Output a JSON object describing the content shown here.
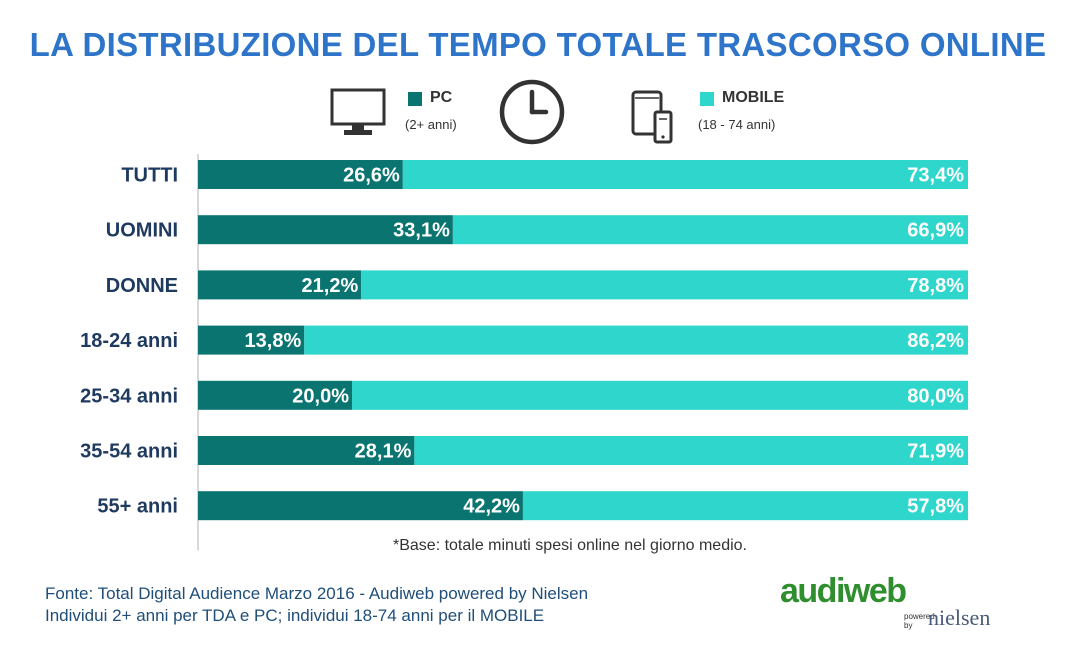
{
  "title": "LA DISTRIBUZIONE DEL TEMPO TOTALE TRASCORSO ONLINE",
  "legend": {
    "pc": {
      "label": "PC",
      "sub": "(2+ anni)",
      "color": "#0a7570",
      "icon": "monitor-icon"
    },
    "clock_icon": "clock-icon",
    "mobile": {
      "label": "MOBILE",
      "sub": "(18 - 74 anni)",
      "color": "#2fd6cc",
      "icon": "mobile-devices-icon"
    }
  },
  "chart_data": {
    "type": "bar",
    "orientation": "horizontal",
    "stacked": true,
    "normalized": true,
    "categories": [
      "TUTTI",
      "UOMINI",
      "DONNE",
      "18-24 anni",
      "25-34 anni",
      "35-54 anni",
      "55+ anni"
    ],
    "series": [
      {
        "name": "PC",
        "values": [
          26.6,
          33.1,
          21.2,
          13.8,
          20.0,
          28.1,
          42.2
        ],
        "labels": [
          "26,6%",
          "33,1%",
          "21,2%",
          "13,8%",
          "20,0%",
          "28,1%",
          "42,2%"
        ],
        "color": "#0a7570"
      },
      {
        "name": "MOBILE",
        "values": [
          73.4,
          66.9,
          78.8,
          86.2,
          80.0,
          71.9,
          57.8
        ],
        "labels": [
          "73,4%",
          "66,9%",
          "78,8%",
          "86,2%",
          "80,0%",
          "71,9%",
          "57,8%"
        ],
        "color": "#2fd6cc"
      }
    ],
    "xlim": [
      0,
      100
    ],
    "title": "LA DISTRIBUZIONE DEL TEMPO TOTALE TRASCORSO ONLINE",
    "xlabel": "",
    "ylabel": ""
  },
  "note": "*Base: totale minuti spesi online nel giorno medio.",
  "source": {
    "line1": "Fonte: Total Digital Audience Marzo 2016 - Audiweb powered by Nielsen",
    "line2": "Individui 2+ anni per TDA e PC; individui 18-74 anni per il MOBILE"
  },
  "logo": {
    "brand": "audiweb",
    "powered": "powered by",
    "partner": "nielsen"
  }
}
